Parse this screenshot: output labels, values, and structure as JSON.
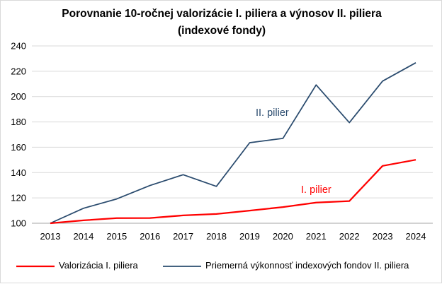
{
  "chart_data": {
    "type": "line",
    "title": "Porovnanie 10-ročnej valorizácie I. piliera a výnosov II. piliera",
    "subtitle": "(indexové fondy)",
    "xlabel": "",
    "ylabel": "",
    "categories": [
      "2013",
      "2014",
      "2015",
      "2016",
      "2017",
      "2018",
      "2019",
      "2020",
      "2021",
      "2022",
      "2023",
      "2024"
    ],
    "ylim": [
      100,
      240
    ],
    "yticks": [
      100,
      120,
      140,
      160,
      180,
      200,
      220,
      240
    ],
    "grid": "horizontal",
    "legend_position": "bottom",
    "series": [
      {
        "name": "Valorizácia I. piliera",
        "label": "I. pilier",
        "color": "#ff0000",
        "values": [
          100,
          102.3,
          104.0,
          104.1,
          106.2,
          107.3,
          110.0,
          112.8,
          116.3,
          117.5,
          145.3,
          150.1
        ]
      },
      {
        "name": "Priemerná výkonnosť indexových fondov II. piliera",
        "label": "II. pilier",
        "color": "#2a4b6e",
        "values": [
          100,
          111.8,
          119.2,
          129.8,
          138.3,
          129.1,
          163.6,
          167.0,
          209.2,
          179.4,
          212.2,
          226.7
        ]
      }
    ]
  }
}
